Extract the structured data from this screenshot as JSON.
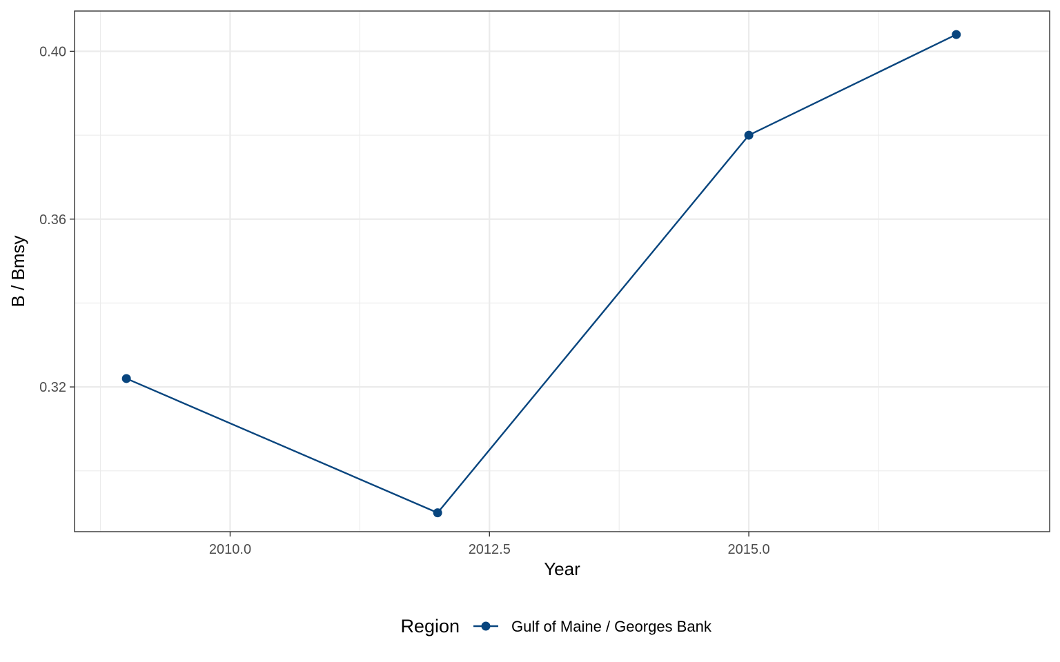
{
  "chart_data": {
    "type": "line",
    "xlabel": "Year",
    "ylabel": "B / Bmsy",
    "xlim": [
      2008.5,
      2017.9
    ],
    "ylim": [
      0.2855,
      0.4096
    ],
    "x_ticks": [
      2010.0,
      2012.5,
      2015.0
    ],
    "x_tick_labels": [
      "2010.0",
      "2012.5",
      "2015.0"
    ],
    "x_minor_ticks": [
      2008.75,
      2011.25,
      2013.75,
      2016.25
    ],
    "y_ticks": [
      0.32,
      0.36,
      0.4
    ],
    "y_tick_labels": [
      "0.32",
      "0.36",
      "0.40"
    ],
    "y_minor_ticks": [
      0.3,
      0.34,
      0.38
    ],
    "grid": true,
    "legend": {
      "title": "Region",
      "position": "bottom"
    },
    "series": [
      {
        "name": "Gulf of Maine / Georges Bank",
        "color": "#08457e",
        "x": [
          2009,
          2012,
          2015,
          2017
        ],
        "y": [
          0.322,
          0.29,
          0.38,
          0.404
        ]
      }
    ]
  }
}
